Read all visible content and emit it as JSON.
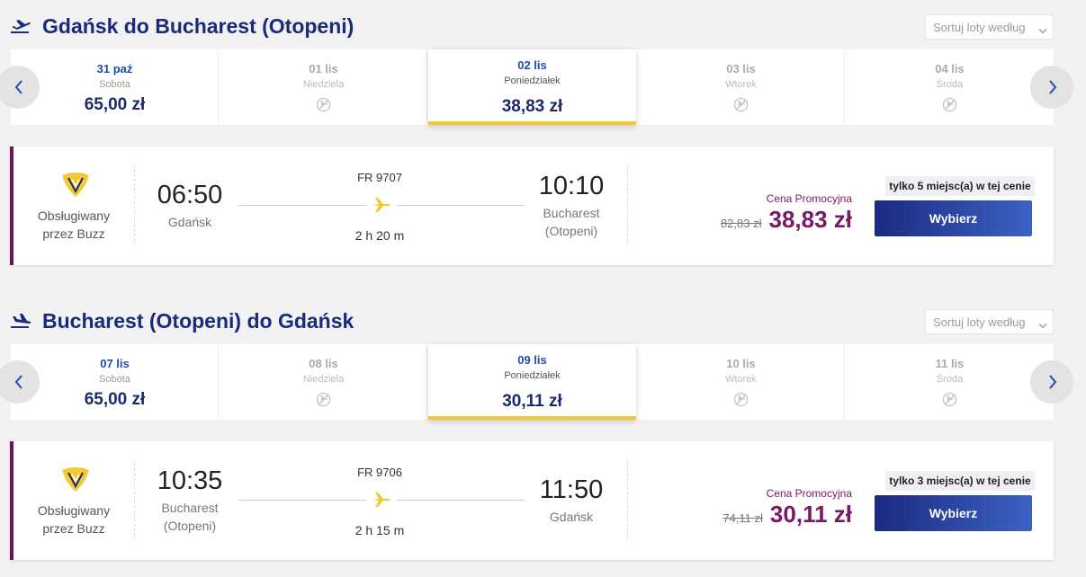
{
  "sections": [
    {
      "title": "Gdańsk do Bucharest (Otopeni)",
      "sort": "Sortuj loty według",
      "dates": [
        {
          "date": "31 paź",
          "day": "Sobota",
          "price": "65,00 zł"
        },
        {
          "date": "01 lis",
          "day": "Niedziela"
        },
        {
          "date": "02 lis",
          "day": "Poniedziałek",
          "price": "38,83 zł"
        },
        {
          "date": "03 lis",
          "day": "Wtorek"
        },
        {
          "date": "04 lis",
          "day": "Środa"
        }
      ],
      "selected": 2,
      "flight": {
        "operator": "Obsługiwany przez Buzz",
        "number": "FR 9707",
        "dep_time": "06:50",
        "dep_city": "Gdańsk",
        "arr_time": "10:10",
        "arr_city": "Bucharest (Otopeni)",
        "duration": "2 h 20 m",
        "promo_label": "Cena Promocyjna",
        "old_price": "82,83 zł",
        "price": "38,83 zł",
        "seats": "tylko 5 miejsc(a) w tej cenie",
        "button": "Wybierz"
      }
    },
    {
      "title": "Bucharest (Otopeni) do Gdańsk",
      "sort": "Sortuj loty według",
      "dates": [
        {
          "date": "07 lis",
          "day": "Sobota",
          "price": "65,00 zł"
        },
        {
          "date": "08 lis",
          "day": "Niedziela"
        },
        {
          "date": "09 lis",
          "day": "Poniedziałek",
          "price": "30,11 zł"
        },
        {
          "date": "10 lis",
          "day": "Wtorek"
        },
        {
          "date": "11 lis",
          "day": "Środa"
        }
      ],
      "selected": 2,
      "flight": {
        "operator": "Obsługiwany przez Buzz",
        "number": "FR 9706",
        "dep_time": "10:35",
        "dep_city": "Bucharest (Otopeni)",
        "arr_time": "11:50",
        "arr_city": "Gdańsk",
        "duration": "2 h 15 m",
        "promo_label": "Cena Promocyjna",
        "old_price": "74,11 zł",
        "price": "30,11 zł",
        "seats": "tylko 3 miejsc(a) w tej cenie",
        "button": "Wybierz"
      }
    }
  ]
}
